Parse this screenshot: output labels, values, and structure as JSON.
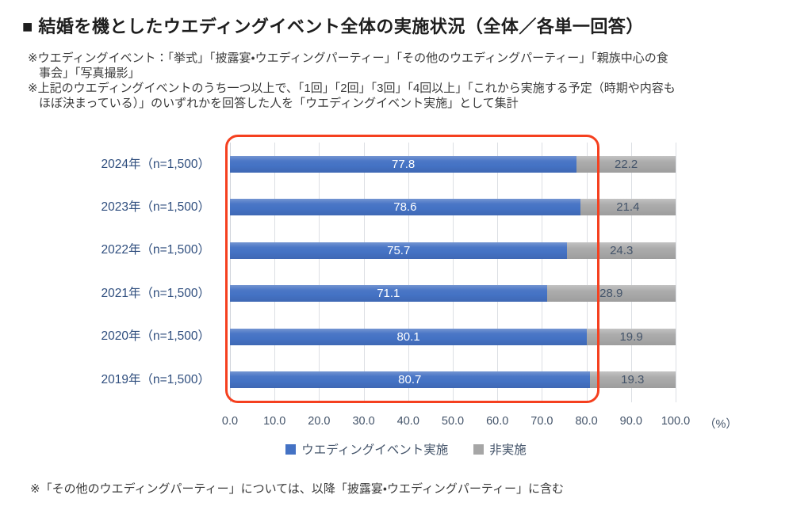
{
  "title": "■ 結婚を機としたウエディングイベント全体の実施状況（全体／各単一回答）",
  "notes": {
    "definition": {
      "line1": "※ウエディングイベント：「挙式」「披露宴・ウエディングパーティー」「その他のウエディングパーティー」「親族中心の食",
      "line2": "事会」「写真撮影」"
    },
    "tally": {
      "line1": "※上記のウエディングイベントのうち一つ以上で、「1回」「2回」「3回」「4回以上」「これから実施する予定（時期や内容も",
      "line2": "ほぼ決まっている）」のいずれかを回答した人を「ウエディングイベント実施」として集計"
    }
  },
  "footer_note": "※「その他のウエディングパーティー」については、以降「披露宴・ウエディングパーティー」に含む",
  "chart_data": {
    "type": "bar",
    "orientation": "horizontal",
    "stacked": true,
    "categories": [
      "2024年（n=1,500）",
      "2023年（n=1,500）",
      "2022年（n=1,500）",
      "2021年（n=1,500）",
      "2020年（n=1,500）",
      "2019年（n=1,500）"
    ],
    "series": [
      {
        "name": "ウエディングイベント実施",
        "color": "#4472C4",
        "values": [
          77.8,
          78.6,
          75.7,
          71.1,
          80.1,
          80.7
        ]
      },
      {
        "name": "非実施",
        "color": "#A6A6A6",
        "values": [
          22.2,
          21.4,
          24.3,
          28.9,
          19.9,
          19.3
        ]
      }
    ],
    "xlim": [
      0,
      100
    ],
    "x_ticks": [
      "0.0",
      "10.0",
      "20.0",
      "30.0",
      "40.0",
      "50.0",
      "60.0",
      "70.0",
      "80.0",
      "90.0",
      "100.0"
    ],
    "x_unit_label": "（%）",
    "grid": true,
    "legend_position": "bottom",
    "annotation": {
      "type": "rounded-rect-highlight",
      "color": "#F5401F",
      "x_range": [
        0,
        81.8
      ]
    }
  },
  "colors": {
    "bar_implemented": "#4472C4",
    "bar_not_implemented": "#A6A6A6",
    "highlight_box": "#F5401F",
    "axis_text": "#44546A",
    "category_text": "#2F4E7E",
    "value_on_blue": "#FFFFFF",
    "value_on_gray": "#44546A"
  }
}
